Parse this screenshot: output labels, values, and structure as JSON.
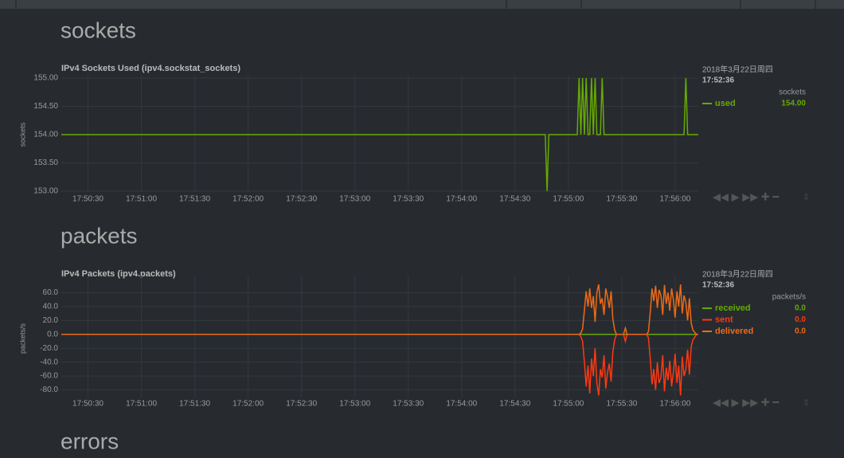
{
  "sections": [
    "sockets",
    "packets",
    "errors"
  ],
  "chart_data": [
    {
      "type": "line",
      "title": "IPv4 Sockets Used (ipv4.sockstat_sockets)",
      "y_label": "sockets",
      "x": [
        64215,
        64487,
        64488,
        64489,
        64490,
        64505,
        64506,
        64507,
        64508,
        64509,
        64510,
        64511,
        64512,
        64513,
        64514,
        64515,
        64516,
        64518,
        64519,
        64520,
        64565,
        64566,
        64567,
        64573
      ],
      "series": [
        {
          "name": "used",
          "color": "#66aa00",
          "values": [
            154,
            154,
            153,
            154,
            154,
            154,
            155,
            154,
            155,
            154,
            155,
            154,
            154,
            155,
            154,
            155,
            154,
            154,
            155,
            154,
            154,
            155,
            154,
            154
          ]
        }
      ],
      "xlim": [
        64215,
        64573
      ],
      "xticks": [
        {
          "value": 64230,
          "label": "17:50:30"
        },
        {
          "value": 64260,
          "label": "17:51:00"
        },
        {
          "value": 64290,
          "label": "17:51:30"
        },
        {
          "value": 64320,
          "label": "17:52:00"
        },
        {
          "value": 64350,
          "label": "17:52:30"
        },
        {
          "value": 64380,
          "label": "17:53:00"
        },
        {
          "value": 64410,
          "label": "17:53:30"
        },
        {
          "value": 64440,
          "label": "17:54:00"
        },
        {
          "value": 64470,
          "label": "17:54:30"
        },
        {
          "value": 64500,
          "label": "17:55:00"
        },
        {
          "value": 64530,
          "label": "17:55:30"
        },
        {
          "value": 64560,
          "label": "17:56:00"
        }
      ],
      "ylim": [
        153,
        155
      ],
      "yticks": [
        {
          "value": 155,
          "label": "155.00"
        },
        {
          "value": 154.5,
          "label": "154.50"
        },
        {
          "value": 154,
          "label": "154.00"
        },
        {
          "value": 153.5,
          "label": "153.50"
        },
        {
          "value": 153,
          "label": "153.00"
        }
      ],
      "grid": true,
      "legend": {
        "date": "2018年3月22日周四",
        "time": "17:52:36",
        "units": "sockets",
        "values": [
          "154.00"
        ]
      }
    },
    {
      "type": "line",
      "title": "IPv4 Packets (ipv4.packets)",
      "y_label": "packets/s",
      "x": [
        64215,
        64500,
        64501,
        64502,
        64503,
        64504,
        64505,
        64506,
        64507,
        64508,
        64509,
        64510,
        64511,
        64512,
        64513,
        64514,
        64515,
        64516,
        64517,
        64518,
        64519,
        64520,
        64521,
        64522,
        64523,
        64524,
        64525,
        64526,
        64527,
        64528,
        64529,
        64530,
        64531,
        64532,
        64533,
        64534,
        64535,
        64536,
        64537,
        64538,
        64539,
        64540,
        64541,
        64542,
        64543,
        64544,
        64545,
        64546,
        64547,
        64548,
        64549,
        64550,
        64551,
        64552,
        64553,
        64554,
        64555,
        64556,
        64557,
        64558,
        64559,
        64560,
        64561,
        64562,
        64563,
        64564,
        64565,
        64566,
        64567,
        64568,
        64569,
        64570,
        64571,
        64572,
        64573
      ],
      "series": [
        {
          "name": "received",
          "color": "#66aa00",
          "values": [
            0,
            0,
            0,
            0,
            0,
            0,
            0,
            0,
            0,
            0,
            0,
            0,
            0,
            0,
            0,
            0,
            0,
            0,
            0,
            0,
            0,
            0,
            0,
            0,
            0,
            0,
            0,
            0,
            0,
            0,
            0,
            0,
            0,
            0,
            0,
            0,
            0,
            0,
            0,
            0,
            0,
            0,
            0,
            0,
            0,
            0,
            0,
            0,
            0,
            0,
            0,
            0,
            0,
            0,
            0,
            0,
            0,
            0,
            0,
            0,
            0,
            0,
            0,
            0,
            0,
            0,
            0,
            0,
            0,
            0,
            0,
            0,
            0,
            0,
            0
          ]
        },
        {
          "name": "sent",
          "color": "#fe3912",
          "values": [
            0,
            0,
            0,
            0,
            0,
            0,
            0,
            0,
            -3,
            -10,
            -40,
            -75,
            -45,
            -85,
            -35,
            -60,
            -20,
            -70,
            -88,
            -50,
            -62,
            -30,
            -78,
            -55,
            -42,
            -68,
            -25,
            -8,
            0,
            0,
            0,
            0,
            0,
            -10,
            0,
            0,
            0,
            0,
            0,
            0,
            0,
            0,
            0,
            0,
            0,
            0,
            -5,
            -35,
            -72,
            -50,
            -80,
            -40,
            -70,
            -62,
            -30,
            -82,
            -48,
            -66,
            -38,
            -75,
            -55,
            -28,
            -70,
            -45,
            -88,
            -32,
            -60,
            -50,
            -22,
            -58,
            -18,
            -8,
            -4,
            0,
            0
          ]
        },
        {
          "name": "delivered",
          "color": "#ee6a15",
          "values": [
            0,
            0,
            0,
            0,
            0,
            0,
            0,
            0,
            2,
            8,
            35,
            62,
            40,
            66,
            38,
            55,
            18,
            60,
            72,
            44,
            52,
            28,
            66,
            54,
            38,
            62,
            22,
            6,
            0,
            0,
            0,
            0,
            0,
            9,
            0,
            0,
            0,
            0,
            0,
            0,
            0,
            0,
            0,
            0,
            0,
            0,
            4,
            32,
            66,
            48,
            70,
            38,
            64,
            56,
            28,
            71,
            44,
            60,
            34,
            66,
            50,
            24,
            62,
            40,
            72,
            30,
            56,
            46,
            20,
            52,
            16,
            6,
            3,
            0,
            0
          ]
        }
      ],
      "xlim": [
        64215,
        64573
      ],
      "xticks": [
        {
          "value": 64230,
          "label": "17:50:30"
        },
        {
          "value": 64260,
          "label": "17:51:00"
        },
        {
          "value": 64290,
          "label": "17:51:30"
        },
        {
          "value": 64320,
          "label": "17:52:00"
        },
        {
          "value": 64350,
          "label": "17:52:30"
        },
        {
          "value": 64380,
          "label": "17:53:00"
        },
        {
          "value": 64410,
          "label": "17:53:30"
        },
        {
          "value": 64440,
          "label": "17:54:00"
        },
        {
          "value": 64470,
          "label": "17:54:30"
        },
        {
          "value": 64500,
          "label": "17:55:00"
        },
        {
          "value": 64530,
          "label": "17:55:30"
        },
        {
          "value": 64560,
          "label": "17:56:00"
        }
      ],
      "ylim": [
        -92,
        80
      ],
      "yticks": [
        {
          "value": 60,
          "label": "60.0"
        },
        {
          "value": 40,
          "label": "40.0"
        },
        {
          "value": 20,
          "label": "20.0"
        },
        {
          "value": 0,
          "label": "0.0"
        },
        {
          "value": -20,
          "label": "-20.0"
        },
        {
          "value": -40,
          "label": "-40.0"
        },
        {
          "value": -60,
          "label": "-60.0"
        },
        {
          "value": -80,
          "label": "-80.0"
        }
      ],
      "grid": true,
      "legend": {
        "date": "2018年3月22日周四",
        "time": "17:52:36",
        "units": "packets/s",
        "values": [
          "0.0",
          "0.0",
          "0.0"
        ]
      }
    }
  ]
}
